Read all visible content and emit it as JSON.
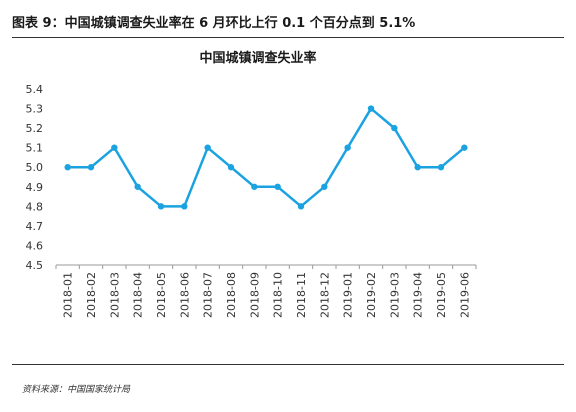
{
  "figure": {
    "title": "图表 9：中国城镇调查失业率在 6 月环比上行 0.1 个百分点到 5.1%",
    "source": "资料来源：中国国家统计局"
  },
  "chart_data": {
    "type": "line",
    "title": "中国城镇调查失业率",
    "xlabel": "",
    "ylabel": "",
    "categories": [
      "2018-01",
      "2018-02",
      "2018-03",
      "2018-04",
      "2018-05",
      "2018-06",
      "2018-07",
      "2018-08",
      "2018-09",
      "2018-10",
      "2018-11",
      "2018-12",
      "2019-01",
      "2019-02",
      "2019-03",
      "2019-04",
      "2019-05",
      "2019-06"
    ],
    "series": [
      {
        "values": [
          5.0,
          5.0,
          5.1,
          4.9,
          4.8,
          4.8,
          5.1,
          5.0,
          4.9,
          4.9,
          4.8,
          4.9,
          5.1,
          5.3,
          5.2,
          5.0,
          5.0,
          5.1
        ],
        "color": "#1aa3e0"
      }
    ],
    "yticks": [
      "4.5",
      "4.6",
      "4.7",
      "4.8",
      "4.9",
      "5.0",
      "5.1",
      "5.2",
      "5.3",
      "5.4"
    ],
    "ylim": [
      4.5,
      5.4
    ],
    "grid": false,
    "legend": "none"
  }
}
